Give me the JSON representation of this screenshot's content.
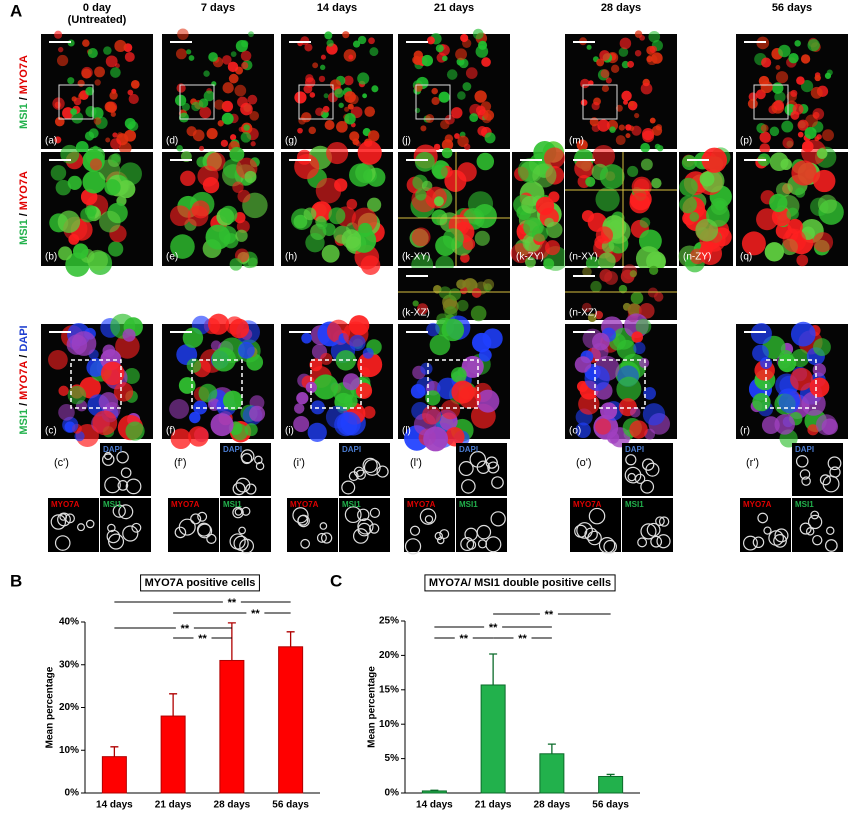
{
  "figure_labels": [
    "A",
    "B",
    "C"
  ],
  "columns": [
    {
      "lines": [
        "0 day",
        "(Untreated)"
      ]
    },
    {
      "lines": [
        "7 days"
      ]
    },
    {
      "lines": [
        "14 days"
      ]
    },
    {
      "lines": [
        "21 days"
      ]
    },
    {
      "lines": [
        "28 days"
      ]
    },
    {
      "lines": [
        "56 days"
      ]
    }
  ],
  "row_labels": [
    {
      "parts": [
        "MSI1",
        "/",
        "MYO7A"
      ]
    },
    {
      "parts": [
        "MSI1",
        "/",
        "MYO7A"
      ]
    },
    {
      "parts": [
        "MSI1",
        "/",
        "MYO7A",
        "/",
        "DAPI"
      ]
    }
  ],
  "panels": {
    "row1": [
      "(a)",
      "(d)",
      "(g)",
      "(j)",
      "(m)",
      "(p)"
    ],
    "row2": [
      "(b)",
      "(e)",
      "(h)",
      "(k-XY)",
      "(k-ZY)",
      "(n-XY)",
      "(n-ZY)",
      "(q)"
    ],
    "row_xz": [
      "(k-XZ)",
      "(n-XZ)"
    ],
    "row3": [
      "(c)",
      "(f)",
      "(i)",
      "(l)",
      "(o)",
      "(r)"
    ]
  },
  "insets": [
    {
      "label": "(c')",
      "channels": [
        "DAPI",
        "MYO7A",
        "MSI1"
      ]
    },
    {
      "label": "(f')",
      "channels": [
        "DAPI",
        "MYO7A",
        "MSI1"
      ]
    },
    {
      "label": "(i')",
      "channels": [
        "DAPI",
        "MYO7A",
        "MSI1"
      ]
    },
    {
      "label": "(l')",
      "channels": [
        "DAPI",
        "MYO7A",
        "MSI1"
      ]
    },
    {
      "label": "(o')",
      "channels": [
        "DAPI",
        "MYO7A",
        "MSI1"
      ]
    },
    {
      "label": "(r')",
      "channels": [
        "DAPI",
        "MYO7A",
        "MSI1"
      ]
    }
  ],
  "chart_data": [
    {
      "type": "bar",
      "title": "MYO7A positive cells",
      "y_label": "Mean percentage",
      "categories": [
        "14 days",
        "21 days",
        "28 days",
        "56 days"
      ],
      "values": [
        8.5,
        18,
        31,
        34.2
      ],
      "errors": [
        2.3,
        5.2,
        8.8,
        3.5
      ],
      "color": "#ff0000",
      "edge_color": "#b00000",
      "ylim": [
        0,
        40
      ],
      "yticks": [
        {
          "value": 0,
          "label": "0%"
        },
        {
          "value": 10,
          "label": "10%"
        },
        {
          "value": 20,
          "label": "20%"
        },
        {
          "value": 30,
          "label": "30%"
        },
        {
          "value": 40,
          "label": "40%"
        }
      ],
      "annotations": [
        "**",
        "**",
        "**",
        "**"
      ]
    },
    {
      "type": "bar",
      "title": "MYO7A/ MSI1 double positive cells",
      "y_label": "Mean percentage",
      "categories": [
        "14 days",
        "21 days",
        "28 days",
        "56 days"
      ],
      "values": [
        0.3,
        15.7,
        5.7,
        2.4
      ],
      "errors": [
        0.1,
        4.5,
        1.4,
        0.3
      ],
      "color": "#22b14c",
      "edge_color": "#0b6b2a",
      "ylim": [
        0,
        25
      ],
      "yticks": [
        {
          "value": 0,
          "label": "0%"
        },
        {
          "value": 5,
          "label": "5%"
        },
        {
          "value": 10,
          "label": "10%"
        },
        {
          "value": 15,
          "label": "15%"
        },
        {
          "value": 20,
          "label": "20%"
        },
        {
          "value": 25,
          "label": "25%"
        }
      ],
      "annotations": [
        "**",
        "**",
        "**",
        "**"
      ]
    }
  ]
}
